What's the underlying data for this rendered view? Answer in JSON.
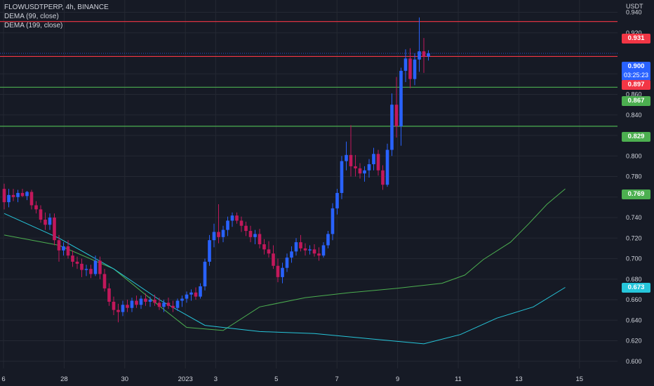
{
  "header": {
    "symbol": "FLOWUSDTPERP, 4h, BINANCE",
    "indicator1": "DEMA (99, close)",
    "indicator2": "DEMA (199, close)",
    "currency": "USDT"
  },
  "colors": {
    "background": "#161a25",
    "bull": "#2962ff",
    "bear": "#c2185b",
    "resistance": "#f23645",
    "support": "#4caf50",
    "dema99": "#4caf50",
    "dema199": "#26c6da",
    "current": "#2962ff"
  },
  "tags": {
    "r1": "0.931",
    "current_price": "0.900",
    "countdown": "03:25:23",
    "r2": "0.897",
    "s1": "0.867",
    "s2": "0.829",
    "dema99_value": "0.769",
    "dema199_value": "0.673"
  },
  "chart_data": {
    "type": "candlestick",
    "title": "FLOWUSDTPERP, 4h, BINANCE",
    "y_unit": "USDT",
    "ylim": [
      0.593,
      0.952
    ],
    "y_ticks": [
      "0.600",
      "0.620",
      "0.640",
      "0.660",
      "0.680",
      "0.700",
      "0.720",
      "0.740",
      "0.760",
      "0.780",
      "0.800",
      "0.820",
      "0.840",
      "0.860",
      "0.880",
      "0.920",
      "0.940"
    ],
    "x_ticks": [
      {
        "label": "6",
        "day_offset": 0
      },
      {
        "label": "28",
        "day_offset": 2
      },
      {
        "label": "30",
        "day_offset": 4
      },
      {
        "label": "2023",
        "day_offset": 6
      },
      {
        "label": "3",
        "day_offset": 7
      },
      {
        "label": "5",
        "day_offset": 9
      },
      {
        "label": "7",
        "day_offset": 11
      },
      {
        "label": "9",
        "day_offset": 13
      },
      {
        "label": "11",
        "day_offset": 15
      },
      {
        "label": "13",
        "day_offset": 17
      },
      {
        "label": "15",
        "day_offset": 19
      }
    ],
    "horizontal_levels": [
      {
        "value": 0.931,
        "kind": "resistance"
      },
      {
        "value": 0.897,
        "kind": "resistance"
      },
      {
        "value": 0.867,
        "kind": "support"
      },
      {
        "value": 0.829,
        "kind": "support"
      }
    ],
    "current_price": 0.9,
    "candles": [
      [
        0.768,
        0.773,
        0.748,
        0.755
      ],
      [
        0.755,
        0.768,
        0.75,
        0.762
      ],
      [
        0.762,
        0.768,
        0.756,
        0.76
      ],
      [
        0.76,
        0.767,
        0.755,
        0.764
      ],
      [
        0.764,
        0.768,
        0.76,
        0.761
      ],
      [
        0.761,
        0.766,
        0.757,
        0.765
      ],
      [
        0.765,
        0.767,
        0.748,
        0.752
      ],
      [
        0.752,
        0.756,
        0.744,
        0.748
      ],
      [
        0.748,
        0.752,
        0.735,
        0.738
      ],
      [
        0.738,
        0.745,
        0.728,
        0.733
      ],
      [
        0.733,
        0.744,
        0.728,
        0.74
      ],
      [
        0.74,
        0.744,
        0.713,
        0.718
      ],
      [
        0.718,
        0.723,
        0.697,
        0.708
      ],
      [
        0.708,
        0.716,
        0.703,
        0.712
      ],
      [
        0.712,
        0.718,
        0.7,
        0.703
      ],
      [
        0.703,
        0.708,
        0.692,
        0.697
      ],
      [
        0.697,
        0.702,
        0.69,
        0.695
      ],
      [
        0.695,
        0.7,
        0.682,
        0.689
      ],
      [
        0.689,
        0.694,
        0.683,
        0.69
      ],
      [
        0.69,
        0.694,
        0.681,
        0.685
      ],
      [
        0.685,
        0.703,
        0.683,
        0.698
      ],
      [
        0.698,
        0.702,
        0.68,
        0.685
      ],
      [
        0.685,
        0.69,
        0.668,
        0.671
      ],
      [
        0.671,
        0.676,
        0.654,
        0.658
      ],
      [
        0.658,
        0.663,
        0.645,
        0.65
      ],
      [
        0.65,
        0.656,
        0.638,
        0.648
      ],
      [
        0.648,
        0.659,
        0.644,
        0.655
      ],
      [
        0.655,
        0.66,
        0.648,
        0.652
      ],
      [
        0.652,
        0.662,
        0.648,
        0.659
      ],
      [
        0.659,
        0.664,
        0.652,
        0.655
      ],
      [
        0.655,
        0.664,
        0.651,
        0.661
      ],
      [
        0.661,
        0.666,
        0.654,
        0.658
      ],
      [
        0.658,
        0.663,
        0.653,
        0.66
      ],
      [
        0.66,
        0.665,
        0.654,
        0.657
      ],
      [
        0.657,
        0.662,
        0.65,
        0.653
      ],
      [
        0.653,
        0.66,
        0.648,
        0.657
      ],
      [
        0.657,
        0.662,
        0.651,
        0.654
      ],
      [
        0.654,
        0.659,
        0.648,
        0.652
      ],
      [
        0.652,
        0.661,
        0.649,
        0.659
      ],
      [
        0.659,
        0.664,
        0.653,
        0.661
      ],
      [
        0.661,
        0.668,
        0.657,
        0.665
      ],
      [
        0.665,
        0.67,
        0.659,
        0.667
      ],
      [
        0.667,
        0.672,
        0.66,
        0.663
      ],
      [
        0.663,
        0.676,
        0.661,
        0.673
      ],
      [
        0.673,
        0.7,
        0.669,
        0.697
      ],
      [
        0.697,
        0.723,
        0.693,
        0.718
      ],
      [
        0.718,
        0.734,
        0.711,
        0.726
      ],
      [
        0.726,
        0.753,
        0.715,
        0.721
      ],
      [
        0.721,
        0.732,
        0.716,
        0.728
      ],
      [
        0.728,
        0.741,
        0.722,
        0.737
      ],
      [
        0.737,
        0.745,
        0.731,
        0.742
      ],
      [
        0.742,
        0.745,
        0.734,
        0.737
      ],
      [
        0.737,
        0.741,
        0.726,
        0.732
      ],
      [
        0.732,
        0.736,
        0.722,
        0.727
      ],
      [
        0.727,
        0.732,
        0.716,
        0.721
      ],
      [
        0.721,
        0.728,
        0.714,
        0.724
      ],
      [
        0.724,
        0.729,
        0.71,
        0.714
      ],
      [
        0.714,
        0.719,
        0.704,
        0.709
      ],
      [
        0.709,
        0.717,
        0.701,
        0.705
      ],
      [
        0.705,
        0.713,
        0.69,
        0.693
      ],
      [
        0.693,
        0.7,
        0.677,
        0.682
      ],
      [
        0.682,
        0.696,
        0.676,
        0.691
      ],
      [
        0.691,
        0.705,
        0.687,
        0.701
      ],
      [
        0.701,
        0.712,
        0.696,
        0.707
      ],
      [
        0.707,
        0.72,
        0.703,
        0.716
      ],
      [
        0.716,
        0.723,
        0.707,
        0.71
      ],
      [
        0.71,
        0.715,
        0.703,
        0.708
      ],
      [
        0.708,
        0.713,
        0.704,
        0.709
      ],
      [
        0.709,
        0.714,
        0.702,
        0.705
      ],
      [
        0.705,
        0.711,
        0.698,
        0.703
      ],
      [
        0.703,
        0.716,
        0.701,
        0.713
      ],
      [
        0.713,
        0.727,
        0.71,
        0.724
      ],
      [
        0.724,
        0.754,
        0.718,
        0.749
      ],
      [
        0.749,
        0.768,
        0.743,
        0.764
      ],
      [
        0.764,
        0.8,
        0.758,
        0.795
      ],
      [
        0.795,
        0.814,
        0.786,
        0.801
      ],
      [
        0.801,
        0.83,
        0.78,
        0.79
      ],
      [
        0.79,
        0.801,
        0.78,
        0.788
      ],
      [
        0.788,
        0.793,
        0.778,
        0.783
      ],
      [
        0.783,
        0.79,
        0.775,
        0.786
      ],
      [
        0.786,
        0.797,
        0.779,
        0.792
      ],
      [
        0.792,
        0.808,
        0.786,
        0.802
      ],
      [
        0.802,
        0.806,
        0.781,
        0.786
      ],
      [
        0.786,
        0.791,
        0.767,
        0.772
      ],
      [
        0.772,
        0.812,
        0.77,
        0.806
      ],
      [
        0.806,
        0.861,
        0.8,
        0.85
      ],
      [
        0.85,
        0.877,
        0.818,
        0.829
      ],
      [
        0.829,
        0.886,
        0.81,
        0.883
      ],
      [
        0.883,
        0.904,
        0.872,
        0.895
      ],
      [
        0.895,
        0.905,
        0.866,
        0.875
      ],
      [
        0.875,
        0.9,
        0.869,
        0.894
      ],
      [
        0.894,
        0.935,
        0.882,
        0.902
      ],
      [
        0.902,
        0.915,
        0.881,
        0.897
      ],
      [
        0.897,
        0.903,
        0.893,
        0.9
      ]
    ],
    "series": [
      {
        "name": "DEMA (99, close)",
        "color": "#4caf50",
        "points": [
          [
            0,
            0.723
          ],
          [
            12,
            0.713
          ],
          [
            24,
            0.69
          ],
          [
            34,
            0.654
          ],
          [
            40,
            0.633
          ],
          [
            48,
            0.63
          ],
          [
            56,
            0.653
          ],
          [
            66,
            0.662
          ],
          [
            76,
            0.667
          ],
          [
            86,
            0.671
          ],
          [
            96,
            0.676
          ],
          [
            101,
            0.684
          ],
          [
            105,
            0.699
          ],
          [
            111,
            0.716
          ],
          [
            115,
            0.734
          ],
          [
            119,
            0.753
          ],
          [
            123,
            0.768
          ]
        ]
      },
      {
        "name": "DEMA (199, close)",
        "color": "#26c6da",
        "points": [
          [
            0,
            0.744
          ],
          [
            12,
            0.72
          ],
          [
            24,
            0.69
          ],
          [
            34,
            0.66
          ],
          [
            44,
            0.635
          ],
          [
            56,
            0.629
          ],
          [
            68,
            0.627
          ],
          [
            80,
            0.622
          ],
          [
            92,
            0.617
          ],
          [
            100,
            0.626
          ],
          [
            108,
            0.642
          ],
          [
            116,
            0.653
          ],
          [
            123,
            0.672
          ]
        ]
      }
    ]
  }
}
